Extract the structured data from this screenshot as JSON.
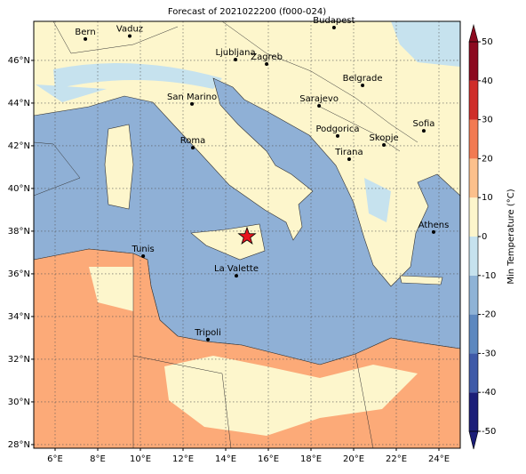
{
  "title": "Forecast of 2021022200 (f000-024)",
  "map": {
    "lonlim": [
      5,
      25
    ],
    "latlim": [
      27.83,
      47.83
    ],
    "xticks": [
      {
        "value": 6,
        "label": "6°E"
      },
      {
        "value": 8,
        "label": "8°E"
      },
      {
        "value": 10,
        "label": "10°E"
      },
      {
        "value": 12,
        "label": "12°E"
      },
      {
        "value": 14,
        "label": "14°E"
      },
      {
        "value": 16,
        "label": "16°E"
      },
      {
        "value": 18,
        "label": "18°E"
      },
      {
        "value": 20,
        "label": "20°E"
      },
      {
        "value": 22,
        "label": "22°E"
      },
      {
        "value": 24,
        "label": "24°E"
      }
    ],
    "yticks": [
      {
        "value": 28,
        "label": "28°N"
      },
      {
        "value": 30,
        "label": "30°N"
      },
      {
        "value": 32,
        "label": "32°N"
      },
      {
        "value": 34,
        "label": "34°N"
      },
      {
        "value": 36,
        "label": "36°N"
      },
      {
        "value": 38,
        "label": "38°N"
      },
      {
        "value": 40,
        "label": "40°N"
      },
      {
        "value": 42,
        "label": "42°N"
      },
      {
        "value": 44,
        "label": "44°N"
      },
      {
        "value": 46,
        "label": "46°N"
      }
    ],
    "grid": true,
    "cities": [
      {
        "name": "Bern",
        "lon": 7.42,
        "lat": 47.0
      },
      {
        "name": "Vaduz",
        "lon": 9.5,
        "lat": 47.14
      },
      {
        "name": "Budapest",
        "lon": 19.08,
        "lat": 47.54
      },
      {
        "name": "Ljubljana",
        "lon": 14.46,
        "lat": 46.04
      },
      {
        "name": "Zagreb",
        "lon": 15.92,
        "lat": 45.83
      },
      {
        "name": "Belgrade",
        "lon": 20.42,
        "lat": 44.83
      },
      {
        "name": "San Marino",
        "lon": 12.42,
        "lat": 43.96
      },
      {
        "name": "Sarajevo",
        "lon": 18.38,
        "lat": 43.87
      },
      {
        "name": "Sofia",
        "lon": 23.29,
        "lat": 42.7
      },
      {
        "name": "Podgorica",
        "lon": 19.25,
        "lat": 42.46
      },
      {
        "name": "Skopje",
        "lon": 21.42,
        "lat": 42.04
      },
      {
        "name": "Roma",
        "lon": 12.46,
        "lat": 41.91
      },
      {
        "name": "Tirana",
        "lon": 19.79,
        "lat": 41.37
      },
      {
        "name": "Athens",
        "lon": 23.75,
        "lat": 37.96
      },
      {
        "name": "Tunis",
        "lon": 10.13,
        "lat": 36.83
      },
      {
        "name": "La Valette",
        "lon": 14.5,
        "lat": 35.91
      },
      {
        "name": "Tripoli",
        "lon": 13.17,
        "lat": 32.92
      }
    ],
    "marker": {
      "lon": 15.0,
      "lat": 37.75,
      "color": "#e8141e"
    }
  },
  "colorbar": {
    "label": "Min Temperature (°C)",
    "lim": [
      -50,
      50
    ],
    "ticks": [
      -50,
      -40,
      -30,
      -20,
      -10,
      0,
      10,
      20,
      30,
      40,
      50
    ],
    "colors": [
      "#1c1e78",
      "#3f5aa8",
      "#5d88bf",
      "#8fb3d6",
      "#c6e2ee",
      "#fdf6cc",
      "#fcc08c",
      "#f27a52",
      "#cf2e2a",
      "#8c0a20"
    ]
  }
}
